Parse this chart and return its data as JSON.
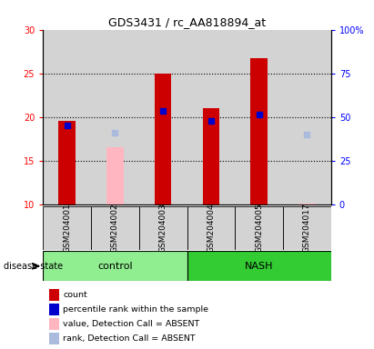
{
  "title": "GDS3431 / rc_AA818894_at",
  "samples": [
    "GSM204001",
    "GSM204002",
    "GSM204003",
    "GSM204004",
    "GSM204005",
    "GSM204017"
  ],
  "red_bars": [
    19.5,
    null,
    25.0,
    21.0,
    26.7,
    null
  ],
  "pink_bars": [
    null,
    16.5,
    null,
    null,
    null,
    10.05
  ],
  "blue_squares_left": [
    19.0,
    null,
    20.7,
    19.5,
    20.3,
    null
  ],
  "lightblue_squares_left": [
    null,
    18.2,
    null,
    null,
    null,
    18.0
  ],
  "ylim_left": [
    10,
    30
  ],
  "ylim_right": [
    0,
    100
  ],
  "yticks_left": [
    10,
    15,
    20,
    25,
    30
  ],
  "yticks_right": [
    0,
    25,
    50,
    75,
    100
  ],
  "ytick_labels_right": [
    "0",
    "25",
    "50",
    "75",
    "100%"
  ],
  "bar_width": 0.35,
  "red_color": "#cc0000",
  "pink_color": "#ffb6c1",
  "blue_color": "#0000cc",
  "lightblue_color": "#aabbdd",
  "bg_color": "#d3d3d3",
  "group_ctrl_color": "#90ee90",
  "group_nash_color": "#33cc33",
  "ctrl_samples": [
    0,
    1,
    2
  ],
  "nash_samples": [
    3,
    4,
    5
  ],
  "legend_items": [
    {
      "label": "count",
      "color": "#cc0000"
    },
    {
      "label": "percentile rank within the sample",
      "color": "#0000cc"
    },
    {
      "label": "value, Detection Call = ABSENT",
      "color": "#ffb6c1"
    },
    {
      "label": "rank, Detection Call = ABSENT",
      "color": "#aabbdd"
    }
  ]
}
